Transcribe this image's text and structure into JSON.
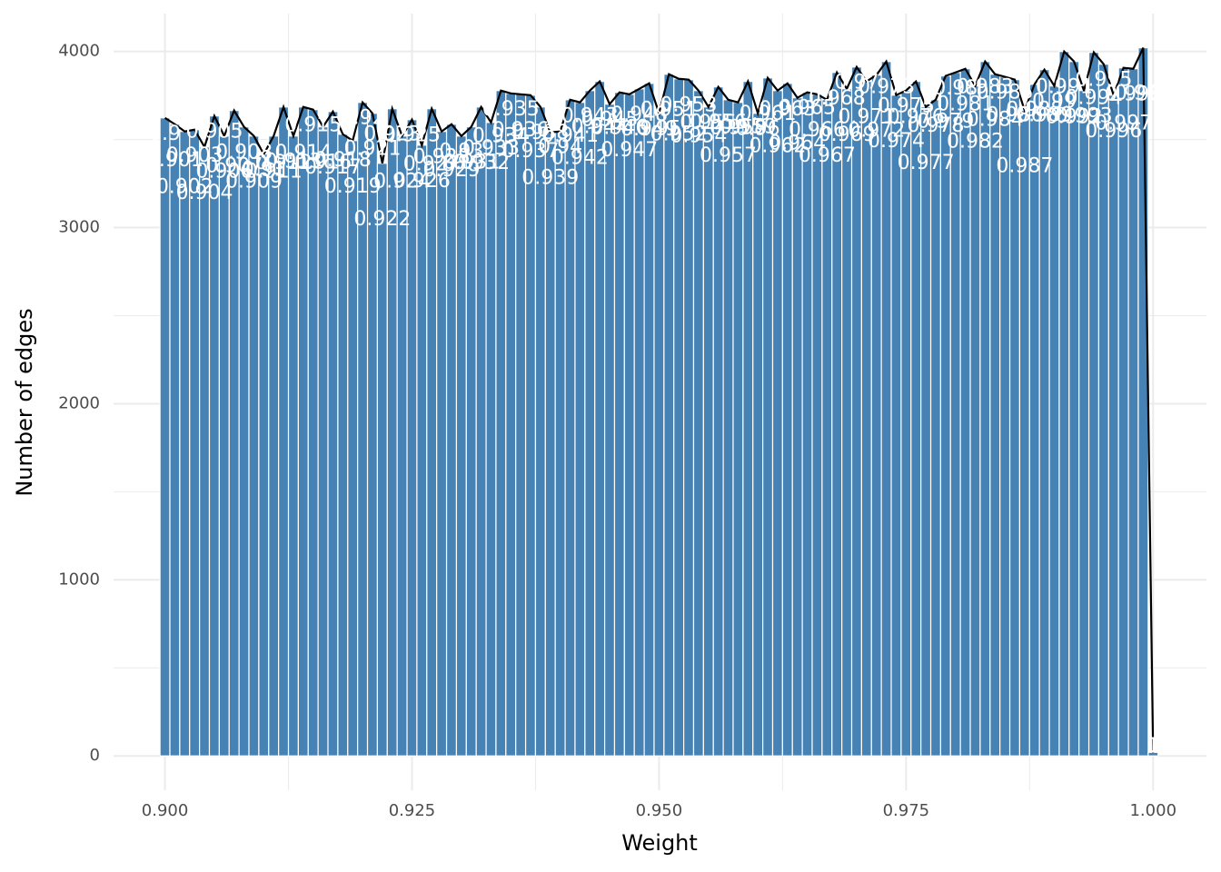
{
  "chart_data": {
    "type": "histogram",
    "x_label": "Weight",
    "y_label": "Number of edges",
    "color": "#4682b4",
    "line_color": "#000000",
    "label_color": "#ffffff",
    "grid": true,
    "bins": [
      0.8995,
      0.9005,
      0.9015,
      0.9025,
      0.9035,
      0.9045,
      0.9055,
      0.9065,
      0.9075,
      0.9085,
      0.9095,
      0.9105,
      0.9115,
      0.9125,
      0.9135,
      0.9145,
      0.9155,
      0.9165,
      0.9175,
      0.9185,
      0.9195,
      0.9205,
      0.9215,
      0.9225,
      0.9235,
      0.9245,
      0.9255,
      0.9265,
      0.9275,
      0.9285,
      0.9295,
      0.9305,
      0.9315,
      0.9325,
      0.9335,
      0.9345,
      0.9355,
      0.9365,
      0.9375,
      0.9385,
      0.9395,
      0.9405,
      0.9415,
      0.9425,
      0.9435,
      0.9445,
      0.9455,
      0.9465,
      0.9475,
      0.9485,
      0.9495,
      0.9505,
      0.9515,
      0.9525,
      0.9535,
      0.9545,
      0.9555,
      0.9565,
      0.9575,
      0.9585,
      0.9595,
      0.9605,
      0.9615,
      0.9625,
      0.9635,
      0.9645,
      0.9655,
      0.9665,
      0.9675,
      0.9685,
      0.9695,
      0.9705,
      0.9715,
      0.9725,
      0.9735,
      0.9745,
      0.9755,
      0.9765,
      0.9775,
      0.9785,
      0.9795,
      0.9805,
      0.9815,
      0.9825,
      0.9835,
      0.9845,
      0.9855,
      0.9865,
      0.9875,
      0.9885,
      0.9895,
      0.9905,
      0.9915,
      0.9925,
      0.9935,
      0.9945,
      0.9955,
      0.9965,
      0.9975,
      0.9985,
      0.9995,
      1.0005
    ],
    "values": [
      3623,
      3587,
      3546,
      3556,
      3458,
      3634,
      3520,
      3665,
      3572,
      3520,
      3417,
      3520,
      3685,
      3520,
      3685,
      3670,
      3572,
      3659,
      3530,
      3494,
      3711,
      3649,
      3365,
      3675,
      3520,
      3613,
      3468,
      3675,
      3546,
      3587,
      3520,
      3572,
      3685,
      3597,
      3778,
      3762,
      3757,
      3752,
      3685,
      3541,
      3546,
      3726,
      3711,
      3778,
      3830,
      3701,
      3768,
      3757,
      3788,
      3819,
      3649,
      3871,
      3845,
      3840,
      3778,
      3685,
      3799,
      3726,
      3711,
      3830,
      3649,
      3850,
      3778,
      3819,
      3737,
      3768,
      3757,
      3726,
      3881,
      3788,
      3912,
      3830,
      3866,
      3943,
      3752,
      3778,
      3830,
      3685,
      3726,
      3861,
      3881,
      3902,
      3804,
      3943,
      3871,
      3856,
      3840,
      3665,
      3814,
      3897,
      3804,
      4000,
      3943,
      3778,
      3995,
      3928,
      3752,
      3907,
      3902,
      4021,
      20
    ],
    "labels": [
      "0.9",
      "0.901",
      "0.902",
      "0.903",
      "0.904",
      "0.905",
      "0.906",
      "0.907",
      "0.908",
      "0.909",
      "0.91",
      "0.911",
      "0.912",
      "0.913",
      "0.914",
      "0.915",
      "0.916",
      "0.917",
      "0.918",
      "0.919",
      "0.92",
      "0.921",
      "0.922",
      "0.923",
      "0.924",
      "0.925",
      "0.926",
      "0.927",
      "0.928",
      "0.929",
      "0.93",
      "0.931",
      "0.932",
      "0.933",
      "0.934",
      "0.935",
      "0.936",
      "0.937",
      "0.938",
      "0.939",
      "0.94",
      "0.941",
      "0.942",
      "0.943",
      "0.944",
      "0.945",
      "0.946",
      "0.947",
      "0.948",
      "0.949",
      "0.95",
      "0.951",
      "0.952",
      "0.953",
      "0.954",
      "0.955",
      "0.956",
      "0.957",
      "0.958",
      "0.959",
      "0.96",
      "0.961",
      "0.962",
      "0.963",
      "0.964",
      "0.965",
      "0.966",
      "0.967",
      "0.968",
      "0.969",
      "0.97",
      "0.971",
      "0.972",
      "0.973",
      "0.974",
      "0.975",
      "0.976",
      "0.977",
      "0.978",
      "0.979",
      "0.98",
      "0.981",
      "0.982",
      "0.983",
      "0.984",
      "0.985",
      "0.986",
      "0.987",
      "0.988",
      "0.989",
      "0.99",
      "0.991",
      "0.992",
      "0.993",
      "0.994",
      "0.995",
      "0.996",
      "0.997",
      "0.998",
      "0.999",
      "1"
    ],
    "xlim": [
      0.8948,
      1.0054
    ],
    "ylim": [
      -195,
      4215
    ],
    "xticks": [
      {
        "value": 0.9,
        "label": "0.900"
      },
      0.925,
      {
        "value": 0.95,
        "label": "0.950"
      },
      0.975,
      {
        "value": 1.0,
        "label": "1.000"
      }
    ],
    "xminorticks": [
      0.9125,
      0.9375,
      0.9625,
      0.9875
    ],
    "yticks": [
      0,
      1000,
      2000,
      3000,
      4000
    ],
    "yminorticks": [
      500,
      1500,
      2500,
      3500
    ]
  }
}
